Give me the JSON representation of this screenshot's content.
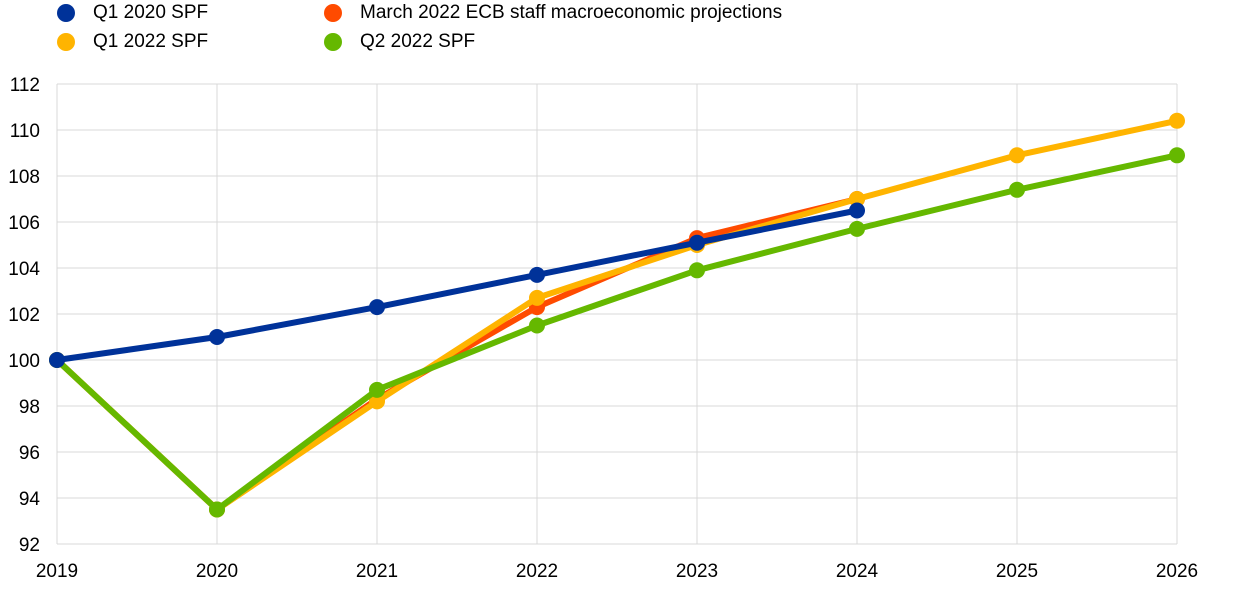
{
  "chart_data": {
    "type": "line",
    "categories": [
      "2019",
      "2020",
      "2021",
      "2022",
      "2023",
      "2024",
      "2025",
      "2026"
    ],
    "ylim": [
      92,
      112
    ],
    "yticks": [
      "92",
      "94",
      "96",
      "98",
      "100",
      "102",
      "104",
      "106",
      "108",
      "110",
      "112"
    ],
    "grid": true,
    "legend_position": "top",
    "series": [
      {
        "name": "Q1 2020 SPF",
        "color": "#003299",
        "values": [
          100,
          101.0,
          102.3,
          103.7,
          105.1,
          106.5,
          null,
          null
        ]
      },
      {
        "name": "March 2022 ECB staff macroeconomic projections",
        "color": "#FF4B00",
        "values": [
          100,
          93.5,
          98.3,
          102.3,
          105.3,
          107.0,
          null,
          null
        ]
      },
      {
        "name": "Q1 2022 SPF",
        "color": "#FFB400",
        "values": [
          100,
          93.5,
          98.2,
          102.7,
          105.0,
          107.0,
          108.9,
          110.4
        ]
      },
      {
        "name": "Q2 2022 SPF",
        "color": "#65B800",
        "values": [
          100,
          93.5,
          98.7,
          101.5,
          103.9,
          105.7,
          107.4,
          108.9
        ]
      }
    ]
  }
}
